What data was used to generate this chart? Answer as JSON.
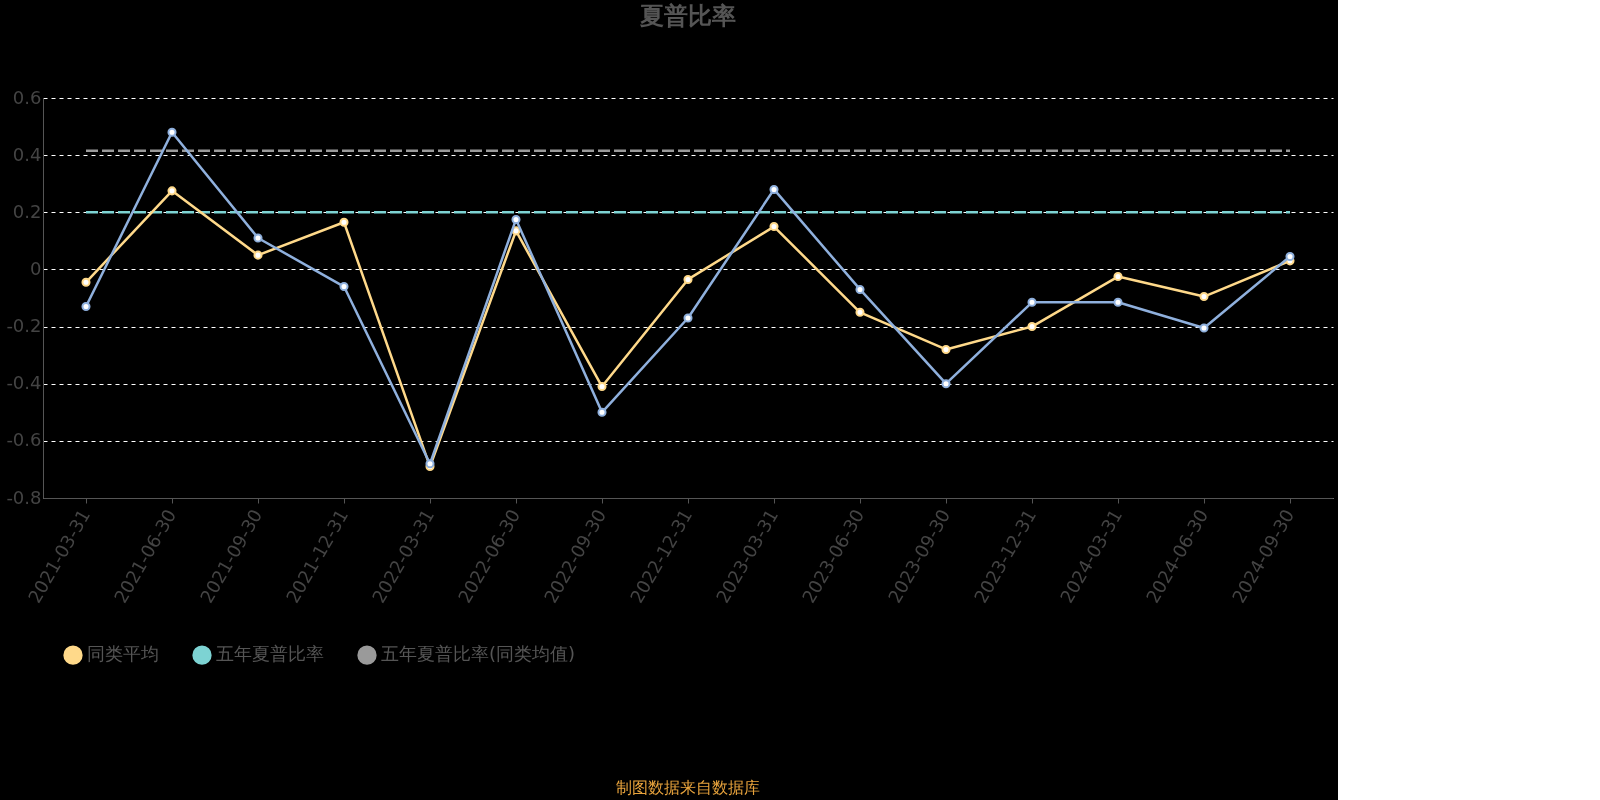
{
  "chart_data": {
    "type": "line",
    "title": "夏普比率",
    "categories": [
      "2021-03-31",
      "2021-06-30",
      "2021-09-30",
      "2021-12-31",
      "2022-03-31",
      "2022-06-30",
      "2022-09-30",
      "2022-12-31",
      "2023-03-31",
      "2023-06-30",
      "2023-09-30",
      "2023-12-31",
      "2024-03-31",
      "2024-06-30",
      "2024-09-30"
    ],
    "series": [
      {
        "color": "#8fb0dd",
        "marker": "circle",
        "line_style": "solid",
        "values": [
          -0.13,
          0.48,
          0.11,
          -0.06,
          -0.68,
          0.175,
          -0.5,
          -0.17,
          0.28,
          -0.07,
          -0.4,
          -0.115,
          -0.115,
          -0.205,
          0.045
        ]
      },
      {
        "name": "同类平均",
        "color": "#ffd98a",
        "marker": "circle",
        "line_style": "solid",
        "values": [
          -0.045,
          0.275,
          0.05,
          0.165,
          -0.69,
          0.135,
          -0.41,
          -0.035,
          0.15,
          -0.15,
          -0.28,
          -0.2,
          -0.025,
          -0.095,
          0.03
        ]
      },
      {
        "name": "五年夏普比率",
        "color": "#7dd3d3",
        "marker": "none",
        "line_style": "dashed",
        "values": [
          0.2,
          0.2,
          0.2,
          0.2,
          0.2,
          0.2,
          0.2,
          0.2,
          0.2,
          0.2,
          0.2,
          0.2,
          0.2,
          0.2,
          0.2
        ]
      },
      {
        "name": "五年夏普比率(同类均值)",
        "color": "#9a9a9a",
        "marker": "none",
        "line_style": "dashed",
        "values": [
          0.415,
          0.415,
          0.415,
          0.415,
          0.415,
          0.415,
          0.415,
          0.415,
          0.415,
          0.415,
          0.415,
          0.415,
          0.415,
          0.415,
          0.415
        ]
      }
    ],
    "ylim": [
      -0.8,
      0.6
    ],
    "yticks": [
      -0.8,
      -0.6,
      -0.4,
      -0.2,
      0,
      0.2,
      0.4,
      0.6
    ],
    "grid": "y",
    "legend": "bottom",
    "annotations": [
      "制图数据来自数据库"
    ]
  }
}
